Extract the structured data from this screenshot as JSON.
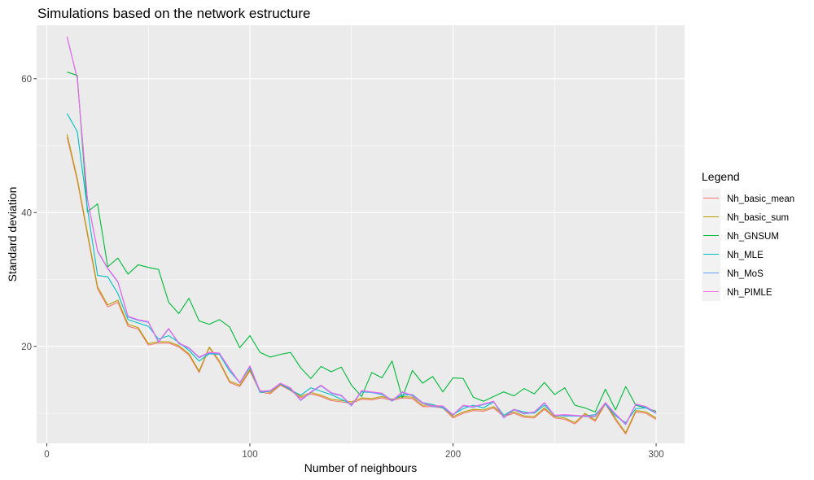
{
  "chart_data": {
    "type": "line",
    "title": "Simulations based on the network estructure",
    "xlabel": "Number of neighbours",
    "ylabel": "Standard deviation",
    "xlim": [
      -5,
      314
    ],
    "ylim": [
      5.5,
      68
    ],
    "x_ticks": [
      0,
      100,
      200,
      300
    ],
    "y_ticks": [
      20,
      40,
      60
    ],
    "grid": true,
    "legend_title": "Legend",
    "legend_position": "right",
    "x": [
      10,
      15,
      20,
      25,
      30,
      35,
      40,
      45,
      50,
      55,
      60,
      65,
      70,
      75,
      80,
      85,
      90,
      95,
      100,
      105,
      110,
      115,
      120,
      125,
      130,
      135,
      140,
      145,
      150,
      155,
      160,
      165,
      170,
      175,
      180,
      185,
      190,
      195,
      200,
      205,
      210,
      215,
      220,
      225,
      230,
      235,
      240,
      245,
      250,
      255,
      260,
      265,
      270,
      275,
      280,
      285,
      290,
      295,
      300
    ],
    "series": [
      {
        "name": "Nh_basic_mean",
        "color": "#F8766D",
        "values": [
          51.3,
          44.8,
          36.7,
          28.6,
          25.9,
          26.6,
          23.0,
          22.6,
          20.2,
          20.5,
          20.5,
          19.9,
          18.7,
          16.1,
          19.8,
          17.6,
          14.6,
          14.0,
          16.3,
          13.2,
          12.9,
          14.2,
          13.4,
          12.3,
          12.9,
          12.5,
          11.9,
          11.7,
          11.5,
          12.1,
          12.0,
          12.3,
          11.9,
          12.3,
          12.2,
          11.0,
          11.0,
          10.8,
          9.3,
          10.0,
          10.4,
          10.3,
          10.8,
          9.5,
          10.0,
          9.4,
          9.3,
          10.6,
          9.3,
          9.1,
          8.4,
          9.8,
          8.8,
          11.4,
          9.0,
          6.9,
          10.2,
          10.0,
          9.1
        ]
      },
      {
        "name": "Nh_basic_sum",
        "color": "#B79F00",
        "values": [
          51.7,
          45.1,
          37.0,
          28.9,
          26.2,
          26.9,
          23.3,
          22.8,
          20.4,
          20.7,
          20.7,
          20.1,
          18.9,
          16.3,
          19.9,
          17.8,
          14.8,
          14.2,
          16.5,
          13.4,
          13.1,
          14.3,
          13.6,
          12.5,
          13.1,
          12.7,
          12.1,
          11.9,
          11.7,
          12.3,
          12.2,
          12.5,
          12.1,
          12.5,
          12.4,
          11.2,
          11.2,
          11.0,
          9.5,
          10.2,
          10.6,
          10.5,
          11.0,
          9.7,
          10.2,
          9.6,
          9.5,
          10.8,
          9.5,
          9.3,
          8.6,
          10.0,
          9.0,
          11.6,
          9.2,
          7.1,
          10.4,
          10.2,
          9.3
        ]
      },
      {
        "name": "Nh_GNSUM",
        "color": "#00BA38",
        "values": [
          61.0,
          60.5,
          40.1,
          41.3,
          31.9,
          33.2,
          30.8,
          32.2,
          31.8,
          31.5,
          26.6,
          24.9,
          27.2,
          23.8,
          23.3,
          24.0,
          22.9,
          19.8,
          21.6,
          19.1,
          18.4,
          18.8,
          19.1,
          16.8,
          15.2,
          17.0,
          16.2,
          16.9,
          14.2,
          12.5,
          16.1,
          15.3,
          17.8,
          12.3,
          16.4,
          14.5,
          15.5,
          13.2,
          15.3,
          15.2,
          12.4,
          11.8,
          12.5,
          13.2,
          12.6,
          13.7,
          12.9,
          14.6,
          12.8,
          13.8,
          11.2,
          10.8,
          10.2,
          13.6,
          10.5,
          14.0,
          11.2,
          10.8,
          10.3
        ]
      },
      {
        "name": "Nh_MLE",
        "color": "#00BFC4",
        "values": [
          54.8,
          52.1,
          40.6,
          30.6,
          30.4,
          27.9,
          24.0,
          23.5,
          23.0,
          21.1,
          21.6,
          20.6,
          19.4,
          17.8,
          18.9,
          18.8,
          16.3,
          14.6,
          16.8,
          13.1,
          13.3,
          14.4,
          13.5,
          12.7,
          13.8,
          13.3,
          12.8,
          12.1,
          11.3,
          13.2,
          13.1,
          12.8,
          12.0,
          12.7,
          12.8,
          11.6,
          11.3,
          10.8,
          9.8,
          10.7,
          11.2,
          10.8,
          11.7,
          9.7,
          10.6,
          10.2,
          10.0,
          11.2,
          9.7,
          9.6,
          9.6,
          9.6,
          9.8,
          11.4,
          9.6,
          8.6,
          10.7,
          10.8,
          10.0
        ]
      },
      {
        "name": "Nh_MoS",
        "color": "#619CFF",
        "values": [
          66.2,
          60.0,
          42.0,
          34.2,
          31.6,
          29.6,
          24.4,
          23.9,
          23.6,
          20.6,
          22.6,
          20.4,
          19.7,
          18.3,
          19.0,
          18.9,
          16.6,
          14.5,
          17.0,
          13.2,
          13.3,
          14.4,
          13.7,
          11.9,
          13.1,
          14.1,
          13.0,
          12.6,
          11.1,
          13.3,
          13.1,
          12.9,
          11.8,
          13.1,
          12.6,
          11.5,
          11.0,
          11.0,
          9.7,
          11.1,
          10.9,
          11.3,
          11.7,
          9.3,
          10.5,
          9.9,
          10.1,
          11.5,
          9.6,
          9.7,
          9.6,
          9.5,
          9.5,
          11.5,
          9.8,
          8.3,
          11.3,
          10.9,
          10.0
        ]
      },
      {
        "name": "Nh_PIMLE",
        "color": "#F564E3",
        "values": [
          66.3,
          60.1,
          42.1,
          34.3,
          31.7,
          29.7,
          24.5,
          24.0,
          23.7,
          20.7,
          22.7,
          20.5,
          19.8,
          18.4,
          19.1,
          19.0,
          16.7,
          14.6,
          17.1,
          13.3,
          13.4,
          14.5,
          13.8,
          12.0,
          13.2,
          14.2,
          13.1,
          12.7,
          11.2,
          13.4,
          13.2,
          13.0,
          11.9,
          13.2,
          12.7,
          11.6,
          11.1,
          11.1,
          9.8,
          11.2,
          11.0,
          11.4,
          11.8,
          9.4,
          10.6,
          10.0,
          10.2,
          11.6,
          9.7,
          9.8,
          9.7,
          9.6,
          9.6,
          11.6,
          9.9,
          8.4,
          11.4,
          11.0,
          10.1
        ]
      }
    ]
  }
}
